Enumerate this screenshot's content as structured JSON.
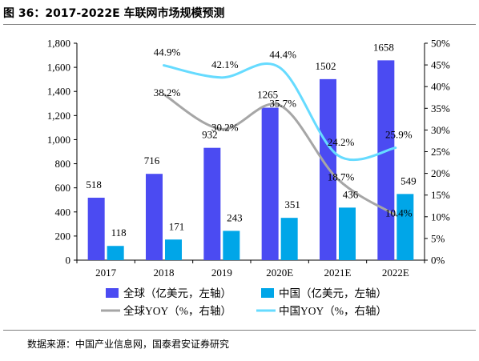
{
  "header": {
    "title": "图 36：2017-2022E 车联网市场规模预测"
  },
  "footer": {
    "source": "数据来源：中国产业信息网，国泰君安证券研究"
  },
  "chart_data": {
    "type": "bar",
    "categories": [
      "2017",
      "2018",
      "2019",
      "2020E",
      "2021E",
      "2022E"
    ],
    "series": [
      {
        "name": "全球（亿美元，左轴）",
        "kind": "bar",
        "axis": "left",
        "color": "#4b4bf2",
        "values": [
          518,
          716,
          932,
          1265,
          1502,
          1658
        ],
        "labels": [
          "518",
          "716",
          "932",
          "1265",
          "1502",
          "1658"
        ]
      },
      {
        "name": "中国（亿美元，左轴）",
        "kind": "bar",
        "axis": "left",
        "color": "#00a6e8",
        "values": [
          118,
          171,
          243,
          351,
          436,
          549
        ],
        "labels": [
          "118",
          "171",
          "243",
          "351",
          "436",
          "549"
        ]
      },
      {
        "name": "全球YOY（%，右轴）",
        "kind": "line",
        "axis": "right",
        "color": "#a6a6a6",
        "x": [
          "2018",
          "2019",
          "2020E",
          "2021E",
          "2022E"
        ],
        "values": [
          38.2,
          30.2,
          35.7,
          18.7,
          10.4
        ],
        "labels": [
          "38.2%",
          "30.2%",
          "35.7%",
          "18.7%",
          "10.4%"
        ]
      },
      {
        "name": "中国YOY（%，右轴）",
        "kind": "line",
        "axis": "right",
        "color": "#66dbff",
        "x": [
          "2018",
          "2019",
          "2020E",
          "2021E",
          "2022E"
        ],
        "values": [
          44.9,
          42.1,
          44.4,
          24.2,
          25.9
        ],
        "labels": [
          "44.9%",
          "42.1%",
          "44.4%",
          "24.2%",
          "25.9%"
        ]
      }
    ],
    "left_axis": {
      "ylim": [
        0,
        1800
      ],
      "ticks": [
        "0",
        "200",
        "400",
        "600",
        "800",
        "1,000",
        "1,200",
        "1,400",
        "1,600",
        "1,800"
      ]
    },
    "right_axis": {
      "ylim": [
        0,
        50
      ],
      "ticks": [
        "0%",
        "5%",
        "10%",
        "15%",
        "20%",
        "25%",
        "30%",
        "35%",
        "40%",
        "45%",
        "50%"
      ]
    },
    "grid": false,
    "legend_position": "bottom"
  }
}
